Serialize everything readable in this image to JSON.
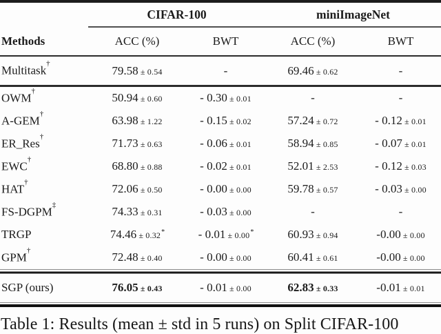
{
  "table": {
    "group_header": {
      "cifar": "CIFAR-100",
      "mini": "miniImageNet"
    },
    "columns": [
      "Methods",
      "ACC (%)",
      "BWT",
      "ACC (%)",
      "BWT"
    ],
    "sections": [
      {
        "rows": [
          {
            "method": "Multitask",
            "sup": "†",
            "cells": [
              {
                "value": "79.58",
                "std": "0.54"
              },
              {
                "dash": "-"
              },
              {
                "value": "69.46",
                "std": "0.62"
              },
              {
                "dash": "-"
              }
            ]
          }
        ]
      },
      {
        "rows": [
          {
            "method": "OWM",
            "sup": "†",
            "cells": [
              {
                "value": "50.94",
                "std": "0.60"
              },
              {
                "value": "- 0.30",
                "std": "0.01"
              },
              {
                "dash": "-"
              },
              {
                "dash": "-"
              }
            ]
          },
          {
            "method": "A-GEM",
            "sup": "†",
            "cells": [
              {
                "value": "63.98",
                "std": "1.22"
              },
              {
                "value": "- 0.15",
                "std": "0.02"
              },
              {
                "value": "57.24",
                "std": "0.72"
              },
              {
                "value": "- 0.12",
                "std": "0.01"
              }
            ]
          },
          {
            "method": "ER_Res",
            "sup": "†",
            "cells": [
              {
                "value": "71.73",
                "std": "0.63"
              },
              {
                "value": "- 0.06",
                "std": "0.01"
              },
              {
                "value": "58.94",
                "std": "0.85"
              },
              {
                "value": "- 0.07",
                "std": "0.01"
              }
            ]
          },
          {
            "method": "EWC",
            "sup": "†",
            "cells": [
              {
                "value": "68.80",
                "std": "0.88"
              },
              {
                "value": "- 0.02",
                "std": "0.01"
              },
              {
                "value": "52.01",
                "std": "2.53"
              },
              {
                "value": "- 0.12",
                "std": "0.03"
              }
            ]
          },
          {
            "method": "HAT",
            "sup": "†",
            "cells": [
              {
                "value": "72.06",
                "std": "0.50"
              },
              {
                "value": "- 0.00",
                "std": "0.00"
              },
              {
                "value": "59.78",
                "std": "0.57"
              },
              {
                "value": "- 0.03",
                "std": "0.00"
              }
            ]
          },
          {
            "method": "FS-DGPM",
            "sup": "‡",
            "cells": [
              {
                "value": "74.33",
                "std": "0.31"
              },
              {
                "value": "- 0.03",
                "std": "0.00"
              },
              {
                "dash": "-"
              },
              {
                "dash": "-"
              }
            ]
          },
          {
            "method": "TRGP",
            "sup": "",
            "cells": [
              {
                "value": "74.46",
                "std": "0.32",
                "vsup": "*"
              },
              {
                "value": "- 0.01",
                "std": "0.00",
                "vsup": "*"
              },
              {
                "value": "60.93",
                "std": "0.94"
              },
              {
                "value": "-0.00",
                "std": "0.00"
              }
            ]
          },
          {
            "method": "GPM",
            "sup": "†",
            "cells": [
              {
                "value": "72.48",
                "std": "0.40"
              },
              {
                "value": "- 0.00",
                "std": "0.00"
              },
              {
                "value": "60.41",
                "std": "0.61"
              },
              {
                "value": "-0.00",
                "std": "0.00"
              }
            ]
          }
        ]
      },
      {
        "rows": [
          {
            "method": "SGP (ours)",
            "sup": "",
            "cells": [
              {
                "value": "76.05",
                "std": "0.43",
                "bold": true
              },
              {
                "value": "- 0.01",
                "std": "0.00"
              },
              {
                "value": "62.83",
                "std": "0.33",
                "bold": true
              },
              {
                "value": "-0.01",
                "std": "0.01"
              }
            ]
          }
        ]
      }
    ]
  },
  "caption": {
    "text": "Table 1: Results (mean ± std in 5 runs) on Split CIFAR-100"
  },
  "plus_minus_symbol": "±"
}
